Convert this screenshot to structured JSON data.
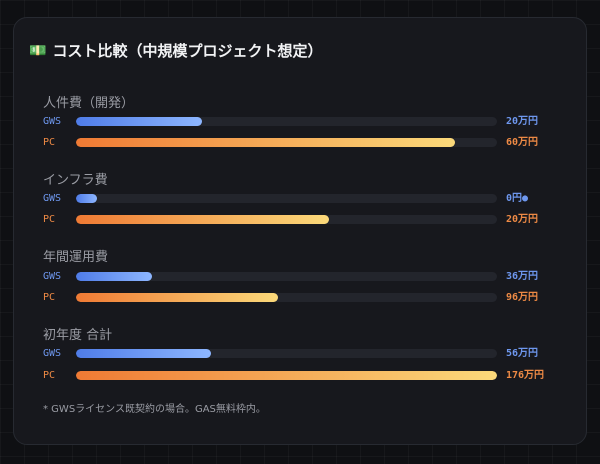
{
  "header": {
    "icon": "money-icon",
    "title": "コスト比較（中規模プロジェクト想定）"
  },
  "sections": [
    {
      "title": "人件費（開発）",
      "gws": {
        "label": "GWS",
        "value": "20万円",
        "fraction": 0.3
      },
      "pc": {
        "label": "PC",
        "value": "60万円",
        "fraction": 0.9
      }
    },
    {
      "title": "インフラ費",
      "gws": {
        "label": "GWS",
        "value": "0円●",
        "fraction": 0.05
      },
      "pc": {
        "label": "PC",
        "value": "20万円",
        "fraction": 0.6
      }
    },
    {
      "title": "年間運用費",
      "gws": {
        "label": "GWS",
        "value": "36万円",
        "fraction": 0.18
      },
      "pc": {
        "label": "PC",
        "value": "96万円",
        "fraction": 0.48
      }
    },
    {
      "title": "初年度 合計",
      "gws": {
        "label": "GWS",
        "value": "56万円",
        "fraction": 0.32
      },
      "pc": {
        "label": "PC",
        "value": "176万円",
        "fraction": 1.0
      }
    }
  ],
  "note": "* GWSライセンス既契約の場合。GAS無料枠内。",
  "colors": {
    "gws": "#6e97ee",
    "pc": "#ee8a45"
  }
}
